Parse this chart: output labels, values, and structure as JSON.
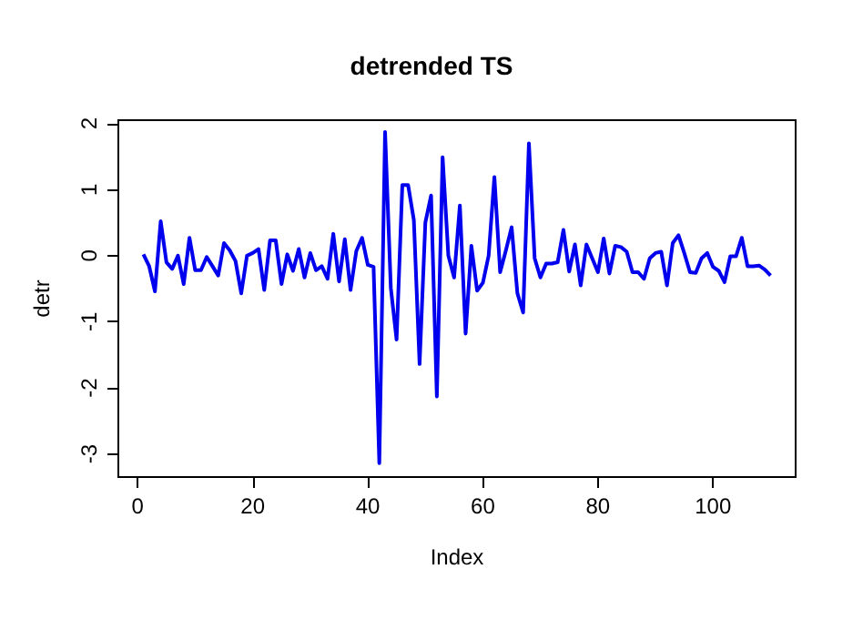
{
  "chart_data": {
    "type": "line",
    "title": "detrended TS",
    "xlabel": "Index",
    "ylabel": "detr",
    "x": [
      1,
      2,
      3,
      4,
      5,
      6,
      7,
      8,
      9,
      10,
      11,
      12,
      13,
      14,
      15,
      16,
      17,
      18,
      19,
      20,
      21,
      22,
      23,
      24,
      25,
      26,
      27,
      28,
      29,
      30,
      31,
      32,
      33,
      34,
      35,
      36,
      37,
      38,
      39,
      40,
      41,
      42,
      43,
      44,
      45,
      46,
      47,
      48,
      49,
      50,
      51,
      52,
      53,
      54,
      55,
      56,
      57,
      58,
      59,
      60,
      61,
      62,
      63,
      64,
      65,
      66,
      67,
      68,
      69,
      70,
      71,
      72,
      73,
      74,
      75,
      76,
      77,
      78,
      79,
      80,
      81,
      82,
      83,
      84,
      85,
      86,
      87,
      88,
      89,
      90,
      91,
      92,
      93,
      94,
      95,
      96,
      97,
      98,
      99,
      100,
      101,
      102,
      103,
      104,
      105,
      106,
      107,
      108,
      109,
      110
    ],
    "series": [
      {
        "color": "#0000ee",
        "values": [
          0.02,
          -0.16,
          -0.54,
          0.52,
          -0.1,
          -0.2,
          0,
          -0.43,
          0.27,
          -0.22,
          -0.22,
          -0.02,
          -0.16,
          -0.3,
          0.19,
          0.08,
          -0.08,
          -0.57,
          0,
          0.04,
          0.1,
          -0.52,
          0.23,
          0.23,
          -0.43,
          0.02,
          -0.23,
          0.1,
          -0.33,
          0.04,
          -0.22,
          -0.16,
          -0.35,
          0.33,
          -0.39,
          0.25,
          -0.52,
          0.07,
          0.27,
          -0.14,
          -0.17,
          -3.14,
          1.87,
          -0.49,
          -1.27,
          1.07,
          1.07,
          0.54,
          -1.64,
          0.5,
          0.91,
          -2.13,
          1.49,
          0,
          -0.33,
          0.76,
          -1.18,
          0.15,
          -0.53,
          -0.41,
          0,
          1.19,
          -0.25,
          0.08,
          0.43,
          -0.57,
          -0.86,
          1.7,
          -0.04,
          -0.33,
          -0.12,
          -0.12,
          -0.1,
          0.39,
          -0.24,
          0.17,
          -0.45,
          0.17,
          -0.04,
          -0.25,
          0.26,
          -0.27,
          0.15,
          0.13,
          0.06,
          -0.25,
          -0.25,
          -0.35,
          -0.04,
          0.04,
          0.06,
          -0.45,
          0.19,
          0.31,
          0.04,
          -0.25,
          -0.26,
          -0.04,
          0.04,
          -0.17,
          -0.23,
          -0.4,
          -0.01,
          -0.01,
          0.27,
          -0.16,
          -0.16,
          -0.15,
          -0.21,
          -0.3
        ]
      }
    ],
    "xlim": [
      -3.36,
      114.36
    ],
    "xticks": [
      0,
      20,
      40,
      60,
      80,
      100
    ],
    "ylim": [
      -3.35,
      2.05
    ],
    "yticks": [
      -3,
      -2,
      -1,
      0,
      1,
      2
    ],
    "grid": false,
    "marker": "none",
    "line_style": "solid"
  }
}
